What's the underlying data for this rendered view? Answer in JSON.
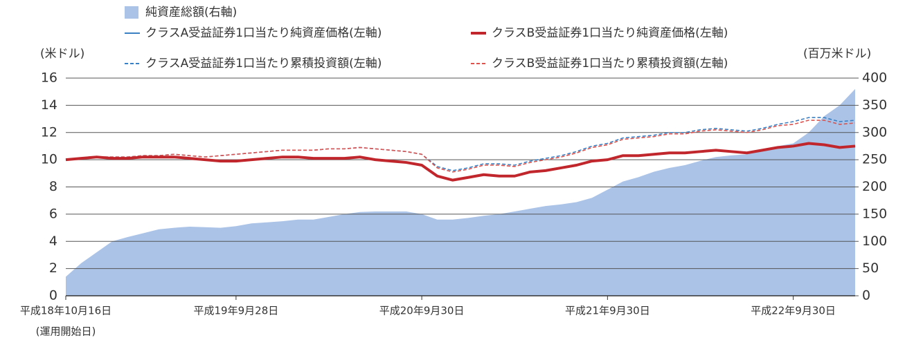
{
  "chart_data": {
    "type": "line",
    "ylabel": "(米ドル)",
    "y2label": "(百万米ドル)",
    "annotation": "(運用開始日)",
    "categories": [
      "平成18年10月16日",
      null,
      null,
      null,
      null,
      null,
      null,
      null,
      null,
      null,
      null,
      "平成19年9月28日",
      null,
      null,
      null,
      null,
      null,
      null,
      null,
      null,
      null,
      null,
      null,
      "平成20年9月30日",
      null,
      null,
      null,
      null,
      null,
      null,
      null,
      null,
      null,
      null,
      null,
      "平成21年9月30日",
      null,
      null,
      null,
      null,
      null,
      null,
      null,
      null,
      null,
      null,
      null,
      "平成22年9月30日",
      null,
      null,
      null,
      null
    ],
    "ylim": [
      0,
      16
    ],
    "yticks": [
      0,
      2,
      4,
      6,
      8,
      10,
      12,
      14,
      16
    ],
    "y2lim": [
      0,
      400
    ],
    "y2ticks": [
      0,
      50,
      100,
      150,
      200,
      250,
      300,
      350,
      400
    ],
    "grid": true,
    "series": [
      {
        "name": "純資産総額(右軸)",
        "type": "area",
        "axis": "y2",
        "color": "#aac3e7",
        "values": [
          35,
          60,
          80,
          100,
          108,
          115,
          122,
          125,
          127,
          126,
          125,
          128,
          133,
          135,
          137,
          140,
          140,
          145,
          150,
          154,
          155,
          155,
          155,
          150,
          140,
          140,
          143,
          147,
          150,
          155,
          160,
          165,
          168,
          172,
          180,
          195,
          210,
          218,
          228,
          235,
          240,
          248,
          255,
          258,
          260,
          268,
          275,
          280,
          300,
          330,
          350,
          380
        ]
      },
      {
        "name": "クラスA受益証券1口当たり累積投資額(左軸)",
        "style": "dashed",
        "color": "#3a7fc1",
        "values": [
          10.0,
          10.1,
          10.2,
          10.2,
          10.2,
          10.3,
          10.3,
          10.4,
          10.3,
          10.2,
          10.3,
          10.4,
          10.5,
          10.6,
          10.7,
          10.7,
          10.7,
          10.8,
          10.8,
          10.9,
          10.8,
          10.7,
          10.6,
          10.4,
          9.5,
          9.2,
          9.4,
          9.7,
          9.7,
          9.6,
          9.9,
          10.1,
          10.3,
          10.6,
          11.0,
          11.2,
          11.6,
          11.7,
          11.8,
          12.0,
          12.0,
          12.2,
          12.3,
          12.2,
          12.1,
          12.3,
          12.6,
          12.8,
          13.1,
          13.1,
          12.8,
          12.9
        ]
      },
      {
        "name": "クラスB受益証券1口当たり累積投資額(左軸)",
        "style": "dashed",
        "color": "#d9534f",
        "values": [
          10.0,
          10.1,
          10.2,
          10.2,
          10.2,
          10.3,
          10.3,
          10.4,
          10.3,
          10.2,
          10.3,
          10.4,
          10.5,
          10.6,
          10.7,
          10.7,
          10.7,
          10.8,
          10.8,
          10.9,
          10.8,
          10.7,
          10.6,
          10.4,
          9.4,
          9.1,
          9.3,
          9.6,
          9.6,
          9.5,
          9.8,
          10.0,
          10.2,
          10.5,
          10.9,
          11.1,
          11.5,
          11.6,
          11.7,
          11.9,
          11.9,
          12.1,
          12.2,
          12.1,
          12.0,
          12.2,
          12.5,
          12.6,
          12.9,
          12.9,
          12.6,
          12.7
        ]
      },
      {
        "name": "クラスA受益証券1口当たり純資産価格(左軸)",
        "style": "solid",
        "color": "#3a7fc1",
        "values": [
          10.0,
          10.1,
          10.2,
          10.1,
          10.1,
          10.2,
          10.2,
          10.2,
          10.1,
          10.0,
          9.9,
          9.9,
          10.0,
          10.1,
          10.2,
          10.2,
          10.1,
          10.1,
          10.1,
          10.2,
          10.0,
          9.9,
          9.8,
          9.6,
          8.8,
          8.5,
          8.7,
          8.9,
          8.8,
          8.8,
          9.1,
          9.2,
          9.4,
          9.6,
          9.9,
          10.0,
          10.3,
          10.3,
          10.4,
          10.5,
          10.5,
          10.6,
          10.7,
          10.6,
          10.5,
          10.7,
          10.9,
          11.0,
          11.2,
          11.1,
          10.9,
          11.0
        ]
      },
      {
        "name": "クラスB受益証券1口当たり純資産価格(左軸)",
        "style": "solid",
        "color": "#c0262c",
        "values": [
          10.0,
          10.1,
          10.2,
          10.1,
          10.1,
          10.2,
          10.2,
          10.2,
          10.1,
          10.0,
          9.9,
          9.9,
          10.0,
          10.1,
          10.2,
          10.2,
          10.1,
          10.1,
          10.1,
          10.2,
          10.0,
          9.9,
          9.8,
          9.6,
          8.8,
          8.5,
          8.7,
          8.9,
          8.8,
          8.8,
          9.1,
          9.2,
          9.4,
          9.6,
          9.9,
          10.0,
          10.3,
          10.3,
          10.4,
          10.5,
          10.5,
          10.6,
          10.7,
          10.6,
          10.5,
          10.7,
          10.9,
          11.0,
          11.2,
          11.1,
          10.9,
          11.0
        ]
      }
    ]
  }
}
